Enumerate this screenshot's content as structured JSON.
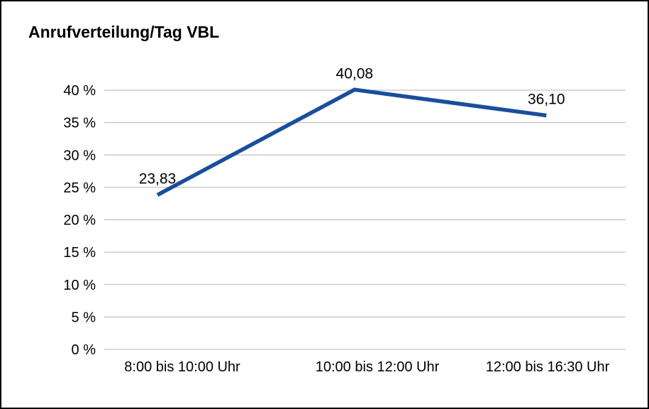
{
  "chart_data": {
    "type": "line",
    "title": "Anrufverteilung/Tag VBL",
    "categories": [
      "8:00 bis 10:00 Uhr",
      "10:00 bis 12:00 Uhr",
      "12:00 bis 16:30 Uhr"
    ],
    "values": [
      23.83,
      40.08,
      36.1
    ],
    "data_labels": [
      "23,83",
      "40,08",
      "36,10"
    ],
    "xlabel": "",
    "ylabel": "",
    "ylim": [
      0,
      40
    ],
    "ytick_step": 5,
    "ytick_labels": [
      "0 %",
      "5 %",
      "10 %",
      "15 %",
      "20 %",
      "25 %",
      "30 %",
      "35 %",
      "40 %"
    ],
    "grid": true,
    "legend": false,
    "line_color": "#1a4e9b",
    "grid_color": "#b3b3b3",
    "text_color": "#000000",
    "background_color": "#ffffff"
  }
}
